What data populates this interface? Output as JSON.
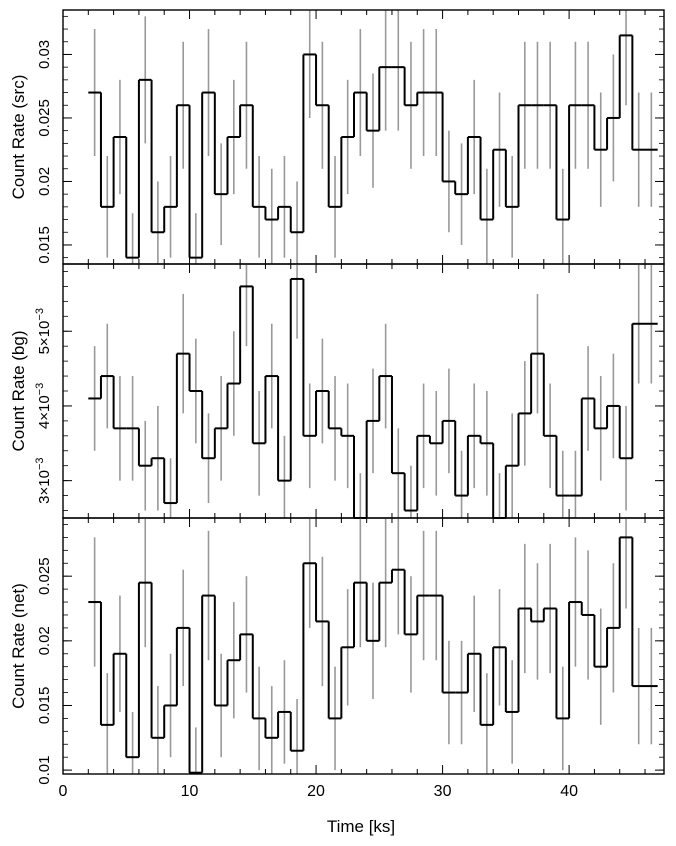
{
  "style": {
    "line_color": "#000000",
    "errorbar_color": "#999999",
    "frame_color": "#000000"
  },
  "chart_data": [
    {
      "type": "line",
      "ylabel": "Count Rate (src)",
      "xlim": [
        0,
        47.5
      ],
      "ylim": [
        0.0135,
        0.0335
      ],
      "yticks": [
        {
          "v": 0.015,
          "label": "0.015"
        },
        {
          "v": 0.02,
          "label": "0.02"
        },
        {
          "v": 0.025,
          "label": "0.025"
        },
        {
          "v": 0.03,
          "label": "0.03"
        }
      ],
      "x": [
        2.5,
        3.5,
        4.5,
        5.5,
        6.5,
        7.5,
        8.5,
        9.5,
        10.5,
        11.5,
        12.5,
        13.5,
        14.5,
        15.5,
        16.5,
        17.5,
        18.5,
        19.5,
        20.5,
        21.5,
        22.5,
        23.5,
        24.5,
        25.5,
        26.5,
        27.5,
        28.5,
        29.5,
        30.5,
        31.5,
        32.5,
        33.5,
        34.5,
        35.5,
        36.5,
        37.5,
        38.5,
        39.5,
        40.5,
        41.5,
        42.5,
        43.5,
        44.5,
        45.5,
        46.5
      ],
      "y": [
        0.027,
        0.018,
        0.0235,
        0.014,
        0.028,
        0.016,
        0.018,
        0.026,
        0.014,
        0.027,
        0.019,
        0.0235,
        0.026,
        0.018,
        0.017,
        0.018,
        0.016,
        0.03,
        0.026,
        0.018,
        0.0235,
        0.027,
        0.024,
        0.029,
        0.029,
        0.026,
        0.027,
        0.027,
        0.02,
        0.019,
        0.0235,
        0.017,
        0.0225,
        0.018,
        0.026,
        0.026,
        0.026,
        0.017,
        0.026,
        0.026,
        0.0225,
        0.025,
        0.0315,
        0.0225,
        0.0225
      ],
      "yerr": [
        0.005,
        0.004,
        0.0045,
        0.0035,
        0.005,
        0.004,
        0.004,
        0.005,
        0.0035,
        0.005,
        0.004,
        0.0045,
        0.005,
        0.004,
        0.004,
        0.004,
        0.004,
        0.005,
        0.005,
        0.004,
        0.0045,
        0.005,
        0.0045,
        0.005,
        0.005,
        0.005,
        0.005,
        0.005,
        0.004,
        0.004,
        0.0045,
        0.004,
        0.0045,
        0.004,
        0.005,
        0.005,
        0.005,
        0.004,
        0.005,
        0.005,
        0.0045,
        0.005,
        0.0055,
        0.0045,
        0.0045
      ]
    },
    {
      "type": "line",
      "ylabel": "Count Rate (bg)",
      "xlim": [
        0,
        47.5
      ],
      "ylim": [
        0.0025,
        0.0059
      ],
      "yticks": [
        {
          "v": 0.003,
          "base": "3×10",
          "exp": "−3"
        },
        {
          "v": 0.004,
          "base": "4×10",
          "exp": "−3"
        },
        {
          "v": 0.005,
          "base": "5×10",
          "exp": "−3"
        }
      ],
      "x": [
        2.5,
        3.5,
        4.5,
        5.5,
        6.5,
        7.5,
        8.5,
        9.5,
        10.5,
        11.5,
        12.5,
        13.5,
        14.5,
        15.5,
        16.5,
        17.5,
        18.5,
        19.5,
        20.5,
        21.5,
        22.5,
        23.5,
        24.5,
        25.5,
        26.5,
        27.5,
        28.5,
        29.5,
        30.5,
        31.5,
        32.5,
        33.5,
        34.5,
        35.5,
        36.5,
        37.5,
        38.5,
        39.5,
        40.5,
        41.5,
        42.5,
        43.5,
        44.5,
        45.5,
        46.5
      ],
      "y": [
        0.0041,
        0.0044,
        0.0037,
        0.0037,
        0.0032,
        0.0033,
        0.0027,
        0.0047,
        0.0042,
        0.0033,
        0.0037,
        0.0043,
        0.0056,
        0.0035,
        0.0044,
        0.003,
        0.0057,
        0.0036,
        0.0042,
        0.0037,
        0.0036,
        0.0025,
        0.0038,
        0.0044,
        0.0031,
        0.0026,
        0.0036,
        0.0035,
        0.0038,
        0.0028,
        0.0036,
        0.0035,
        0.0025,
        0.0032,
        0.0039,
        0.0047,
        0.0036,
        0.0028,
        0.0028,
        0.0041,
        0.0037,
        0.004,
        0.0033,
        0.0051,
        0.0051
      ],
      "yerr": [
        0.0007,
        0.0007,
        0.0007,
        0.0007,
        0.0006,
        0.0007,
        0.0006,
        0.0008,
        0.0007,
        0.0006,
        0.0007,
        0.0007,
        0.0008,
        0.0007,
        0.0007,
        0.0006,
        0.0008,
        0.0007,
        0.0007,
        0.0007,
        0.0007,
        0.0006,
        0.0007,
        0.0007,
        0.0006,
        0.0006,
        0.0007,
        0.0007,
        0.0007,
        0.0006,
        0.0007,
        0.0007,
        0.0006,
        0.0007,
        0.0007,
        0.0008,
        0.0007,
        0.0006,
        0.0006,
        0.0007,
        0.0007,
        0.0007,
        0.0007,
        0.0008,
        0.0008
      ]
    },
    {
      "type": "line",
      "ylabel": "Count Rate (net)",
      "xlabel": "Time [ks]",
      "xlim": [
        0,
        47.5
      ],
      "ylim": [
        0.0097,
        0.0295
      ],
      "xticks": [
        {
          "v": 0,
          "label": "0"
        },
        {
          "v": 10,
          "label": "10"
        },
        {
          "v": 20,
          "label": "20"
        },
        {
          "v": 30,
          "label": "30"
        },
        {
          "v": 40,
          "label": "40"
        }
      ],
      "yticks": [
        {
          "v": 0.01,
          "label": "0.01"
        },
        {
          "v": 0.015,
          "label": "0.015"
        },
        {
          "v": 0.02,
          "label": "0.02"
        },
        {
          "v": 0.025,
          "label": "0.025"
        }
      ],
      "x": [
        2.5,
        3.5,
        4.5,
        5.5,
        6.5,
        7.5,
        8.5,
        9.5,
        10.5,
        11.5,
        12.5,
        13.5,
        14.5,
        15.5,
        16.5,
        17.5,
        18.5,
        19.5,
        20.5,
        21.5,
        22.5,
        23.5,
        24.5,
        25.5,
        26.5,
        27.5,
        28.5,
        29.5,
        30.5,
        31.5,
        32.5,
        33.5,
        34.5,
        35.5,
        36.5,
        37.5,
        38.5,
        39.5,
        40.5,
        41.5,
        42.5,
        43.5,
        44.5,
        45.5,
        46.5
      ],
      "y": [
        0.023,
        0.0135,
        0.019,
        0.011,
        0.0245,
        0.0125,
        0.015,
        0.021,
        0.0098,
        0.0235,
        0.015,
        0.0185,
        0.0205,
        0.014,
        0.0125,
        0.0145,
        0.0115,
        0.026,
        0.0215,
        0.014,
        0.0195,
        0.0245,
        0.02,
        0.0245,
        0.0255,
        0.0205,
        0.0235,
        0.0235,
        0.016,
        0.016,
        0.019,
        0.0135,
        0.0195,
        0.0145,
        0.0225,
        0.0215,
        0.0225,
        0.014,
        0.023,
        0.022,
        0.018,
        0.021,
        0.028,
        0.0165,
        0.0165
      ],
      "yerr": [
        0.005,
        0.004,
        0.0045,
        0.0035,
        0.005,
        0.004,
        0.004,
        0.0045,
        0.0035,
        0.005,
        0.004,
        0.0045,
        0.0045,
        0.004,
        0.004,
        0.004,
        0.004,
        0.005,
        0.005,
        0.004,
        0.0045,
        0.005,
        0.0045,
        0.005,
        0.005,
        0.0045,
        0.005,
        0.005,
        0.004,
        0.004,
        0.0045,
        0.004,
        0.0045,
        0.004,
        0.005,
        0.0045,
        0.005,
        0.004,
        0.005,
        0.005,
        0.0045,
        0.005,
        0.0055,
        0.0045,
        0.0045
      ]
    }
  ]
}
